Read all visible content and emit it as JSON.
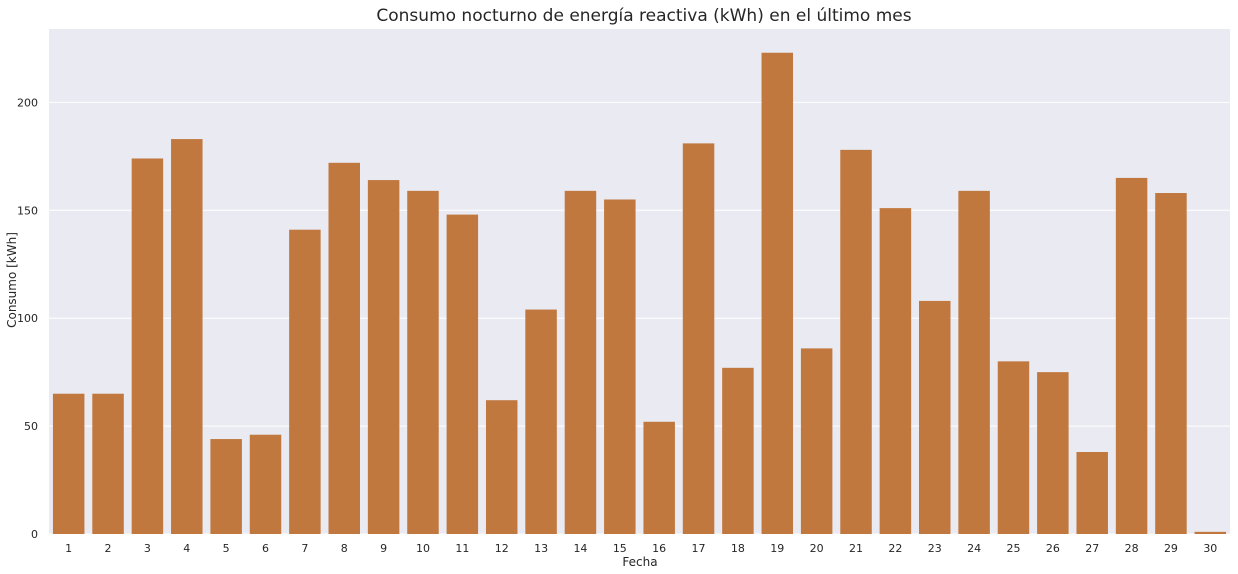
{
  "chart_data": {
    "type": "bar",
    "title": "Consumo nocturno de energía reactiva (kWh) en el último mes",
    "xlabel": "Fecha",
    "ylabel": "Consumo [kWh]",
    "categories": [
      "1",
      "2",
      "3",
      "4",
      "5",
      "6",
      "7",
      "8",
      "9",
      "10",
      "11",
      "12",
      "13",
      "14",
      "15",
      "16",
      "17",
      "18",
      "19",
      "20",
      "21",
      "22",
      "23",
      "24",
      "25",
      "26",
      "27",
      "28",
      "29",
      "30"
    ],
    "values": [
      65,
      65,
      174,
      183,
      44,
      46,
      141,
      172,
      164,
      159,
      148,
      62,
      104,
      159,
      155,
      52,
      181,
      77,
      223,
      86,
      178,
      151,
      108,
      159,
      80,
      75,
      38,
      165,
      158,
      1
    ],
    "ylim": [
      0,
      234
    ],
    "yticks": [
      0,
      50,
      100,
      150,
      200
    ],
    "grid": true,
    "colors": {
      "bar": "#c0783e",
      "plot_background": "#eaeaf2",
      "grid": "#ffffff",
      "text": "#262626"
    }
  }
}
